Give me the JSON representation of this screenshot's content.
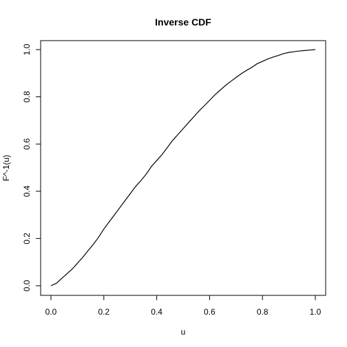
{
  "chart_data": {
    "type": "line",
    "title": "Inverse CDF",
    "xlabel": "u",
    "ylabel": "F^-1(u)",
    "xlim": [
      0,
      1
    ],
    "ylim": [
      0,
      1
    ],
    "xticks": [
      "0.0",
      "0.2",
      "0.4",
      "0.6",
      "0.8",
      "1.0"
    ],
    "yticks": [
      "0.0",
      "0.2",
      "0.4",
      "0.6",
      "0.8",
      "1.0"
    ],
    "grid": false,
    "series": [
      {
        "x": [
          0.0,
          0.02,
          0.04,
          0.06,
          0.08,
          0.1,
          0.12,
          0.14,
          0.16,
          0.18,
          0.2,
          0.22,
          0.24,
          0.26,
          0.28,
          0.3,
          0.32,
          0.34,
          0.36,
          0.38,
          0.4,
          0.42,
          0.44,
          0.46,
          0.48,
          0.5,
          0.52,
          0.54,
          0.56,
          0.58,
          0.6,
          0.62,
          0.64,
          0.66,
          0.68,
          0.7,
          0.72,
          0.74,
          0.76,
          0.78,
          0.8,
          0.82,
          0.84,
          0.86,
          0.88,
          0.9,
          0.92,
          0.94,
          0.96,
          0.98,
          1.0
        ],
        "y": [
          0.0,
          0.01,
          0.03,
          0.05,
          0.07,
          0.095,
          0.12,
          0.148,
          0.175,
          0.205,
          0.24,
          0.27,
          0.3,
          0.33,
          0.36,
          0.39,
          0.42,
          0.445,
          0.472,
          0.505,
          0.53,
          0.555,
          0.585,
          0.615,
          0.64,
          0.665,
          0.69,
          0.715,
          0.74,
          0.762,
          0.785,
          0.808,
          0.828,
          0.848,
          0.865,
          0.882,
          0.898,
          0.912,
          0.925,
          0.94,
          0.95,
          0.96,
          0.968,
          0.975,
          0.983,
          0.988,
          0.991,
          0.994,
          0.996,
          0.998,
          1.0
        ]
      }
    ]
  }
}
